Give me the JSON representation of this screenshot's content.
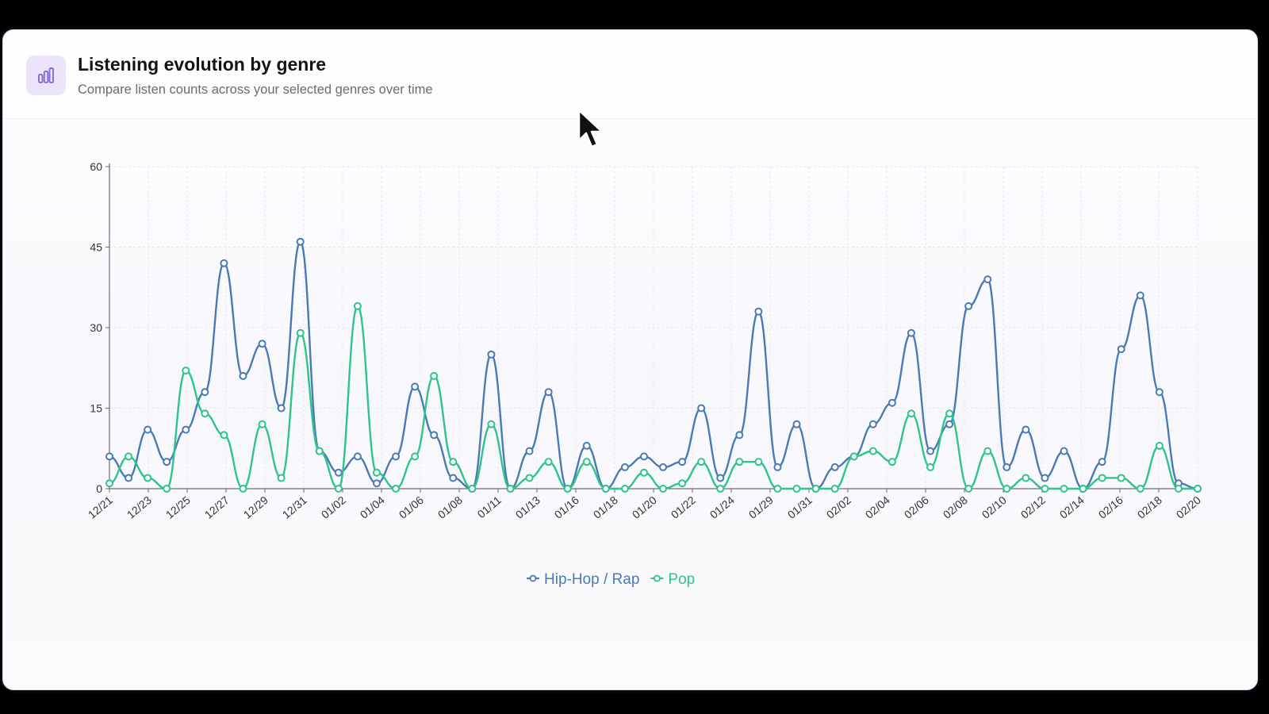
{
  "header": {
    "title": "Listening evolution by genre",
    "subtitle": "Compare listen counts across your selected genres over time"
  },
  "icons": {
    "header_icon": "bar-chart-icon",
    "cursor": "mouse-pointer-icon"
  },
  "colors": {
    "hiphop": "#4a7ab5",
    "pop": "#2ec48a",
    "icon": "#8b6fd6",
    "grid": "#e6e6ee",
    "axis": "#6b6b73"
  },
  "chart_data": {
    "type": "line",
    "ylim": [
      0,
      60
    ],
    "yticks": [
      0,
      15,
      30,
      45,
      60
    ],
    "xticks": [
      "12/21",
      "12/23",
      "12/25",
      "12/27",
      "12/29",
      "12/31",
      "01/02",
      "01/04",
      "01/06",
      "01/08",
      "01/11",
      "01/13",
      "01/16",
      "01/18",
      "01/20",
      "01/22",
      "01/24",
      "01/29",
      "01/31",
      "02/02",
      "02/04",
      "02/06",
      "02/08",
      "02/10",
      "02/12",
      "02/14",
      "02/16",
      "02/18",
      "02/20"
    ],
    "legend": "bottom-center",
    "grid": true,
    "series": [
      {
        "name": "Hip-Hop / Rap",
        "color": "#4a7ab5",
        "values": [
          6,
          2,
          11,
          5,
          11,
          18,
          42,
          21,
          27,
          15,
          46,
          7,
          3,
          6,
          1,
          6,
          19,
          10,
          2,
          0,
          25,
          0,
          7,
          18,
          0,
          8,
          0,
          4,
          6,
          4,
          5,
          15,
          2,
          10,
          33,
          4,
          12,
          0,
          4,
          6,
          12,
          16,
          29,
          7,
          12,
          34,
          39,
          4,
          11,
          2,
          7,
          0,
          5,
          26,
          36,
          18,
          1,
          0
        ]
      },
      {
        "name": "Pop",
        "color": "#2ec48a",
        "values": [
          1,
          6,
          2,
          0,
          22,
          14,
          10,
          0,
          12,
          2,
          29,
          7,
          0,
          34,
          3,
          0,
          6,
          21,
          5,
          0,
          12,
          0,
          2,
          5,
          0,
          5,
          0,
          0,
          3,
          0,
          1,
          5,
          0,
          5,
          5,
          0,
          0,
          0,
          0,
          6,
          7,
          5,
          14,
          4,
          14,
          0,
          7,
          0,
          2,
          0,
          0,
          0,
          2,
          2,
          0,
          8,
          0,
          0
        ]
      }
    ]
  }
}
